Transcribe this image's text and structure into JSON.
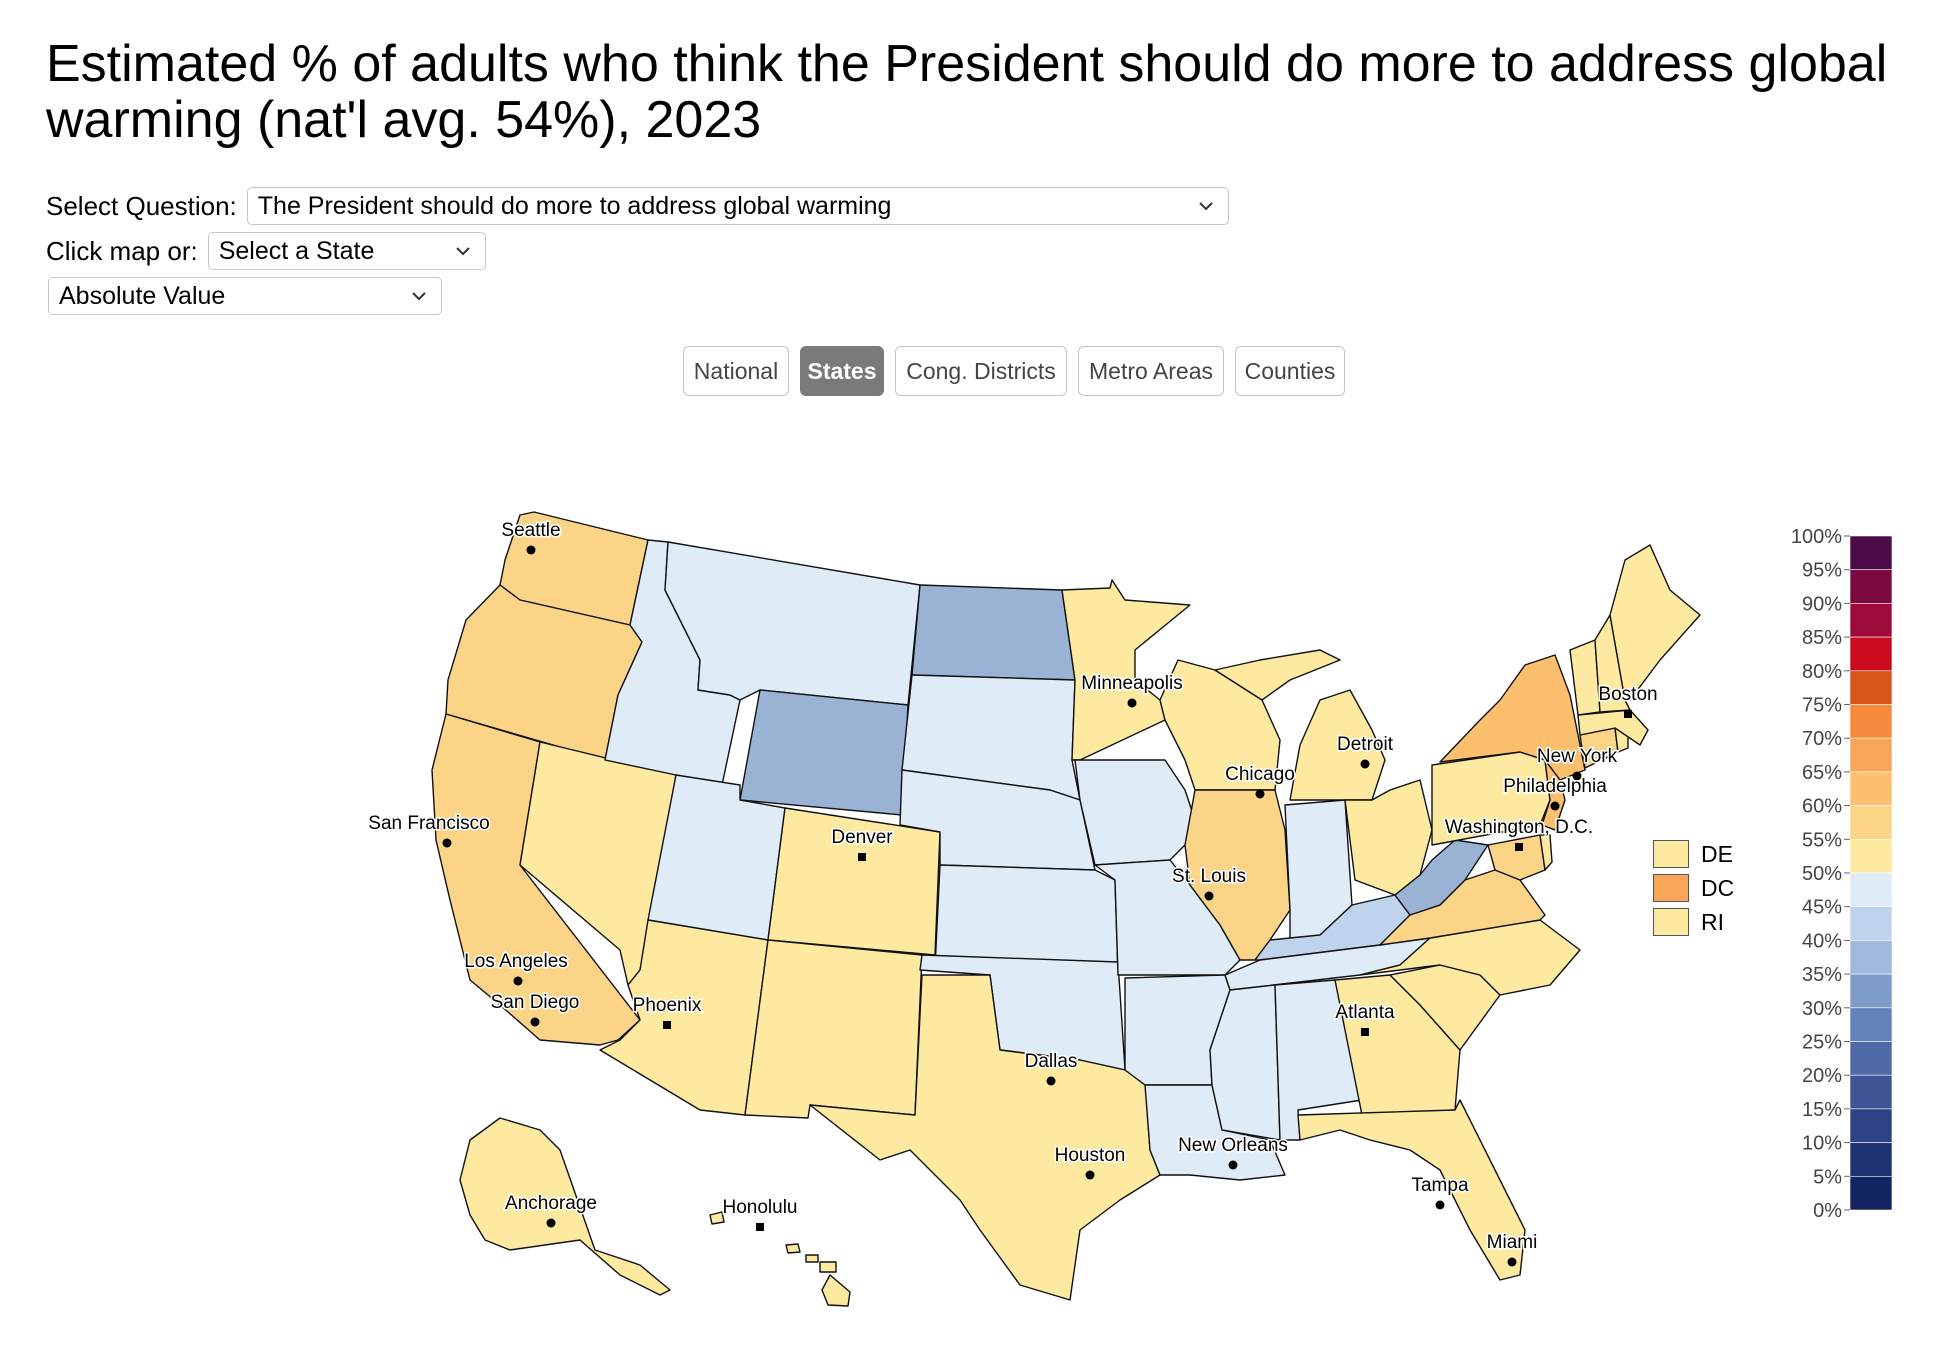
{
  "title": "Estimated % of adults who think the President should do more to address global warming (nat'l avg. 54%), 2023",
  "controls": {
    "question_label": "Select Question:",
    "question_value": "The President should do more to address global warming",
    "state_label": "Click map or:",
    "state_value": "Select a State",
    "measure_value": "Absolute Value"
  },
  "tabs": [
    {
      "label": "National",
      "active": false
    },
    {
      "label": "States",
      "active": true
    },
    {
      "label": "Cong. Districts",
      "active": false
    },
    {
      "label": "Metro Areas",
      "active": false
    },
    {
      "label": "Counties",
      "active": false
    }
  ],
  "small_states": [
    {
      "label": "DE",
      "color": "#fde9a0"
    },
    {
      "label": "DC",
      "color": "#f8a55a"
    },
    {
      "label": "RI",
      "color": "#fde9a0"
    }
  ],
  "color_scale": {
    "ticks": [
      "100%",
      "95%",
      "90%",
      "85%",
      "80%",
      "75%",
      "70%",
      "65%",
      "60%",
      "55%",
      "50%",
      "45%",
      "40%",
      "35%",
      "30%",
      "25%",
      "20%",
      "15%",
      "10%",
      "5%",
      "0%"
    ],
    "colors_top_to_bottom": [
      "#4a0b47",
      "#7a0a3d",
      "#9e0b3b",
      "#cc0a1f",
      "#d9561b",
      "#f58a3c",
      "#f8a55a",
      "#fbbf6e",
      "#fcd488",
      "#fde9a0",
      "#e0ebf8",
      "#bfd3ec",
      "#9fb8db",
      "#7f9cc9",
      "#6582b8",
      "#4f6aa7",
      "#3d5495",
      "#2c4284",
      "#1f3272",
      "#132560"
    ]
  },
  "cities": [
    {
      "name": "Seattle",
      "marker": "dot"
    },
    {
      "name": "San Francisco",
      "marker": "dot"
    },
    {
      "name": "Los Angeles",
      "marker": "dot"
    },
    {
      "name": "San Diego",
      "marker": "dot"
    },
    {
      "name": "Phoenix",
      "marker": "square"
    },
    {
      "name": "Denver",
      "marker": "square"
    },
    {
      "name": "Dallas",
      "marker": "dot"
    },
    {
      "name": "Houston",
      "marker": "dot"
    },
    {
      "name": "Minneapolis",
      "marker": "dot"
    },
    {
      "name": "Chicago",
      "marker": "dot"
    },
    {
      "name": "St. Louis",
      "marker": "dot"
    },
    {
      "name": "Detroit",
      "marker": "dot"
    },
    {
      "name": "New Orleans",
      "marker": "dot"
    },
    {
      "name": "Atlanta",
      "marker": "square"
    },
    {
      "name": "Tampa",
      "marker": "dot"
    },
    {
      "name": "Miami",
      "marker": "dot"
    },
    {
      "name": "Boston",
      "marker": "square"
    },
    {
      "name": "New York",
      "marker": "dot"
    },
    {
      "name": "Philadelphia",
      "marker": "dot"
    },
    {
      "name": "Washington, D.C.",
      "marker": "square"
    },
    {
      "name": "Anchorage",
      "marker": "dot"
    },
    {
      "name": "Honolulu",
      "marker": "square"
    }
  ],
  "state_colors": {
    "low": "#e0ebf8",
    "mid_low": "#bfd3ec",
    "blue": "#9ab3d5",
    "yellow": "#fde9a0",
    "light_orange": "#fcd488",
    "orange": "#fbbf6e"
  }
}
